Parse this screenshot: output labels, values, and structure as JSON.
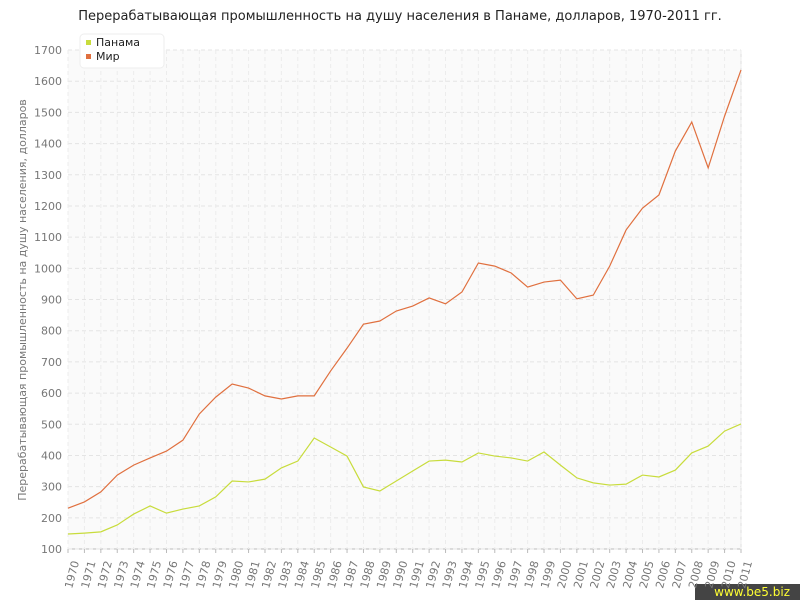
{
  "chart_data": {
    "type": "line",
    "title": "Перерабатывающая промышленность на душу населения в Панаме, долларов, 1970-2011 гг.",
    "y_label": "Перерабатывающая промышленность на душу населения, долларов",
    "x": [
      1970,
      1971,
      1972,
      1973,
      1974,
      1975,
      1976,
      1977,
      1978,
      1979,
      1980,
      1981,
      1982,
      1983,
      1984,
      1985,
      1986,
      1987,
      1988,
      1989,
      1990,
      1991,
      1992,
      1993,
      1994,
      1995,
      1996,
      1997,
      1998,
      1999,
      2000,
      2001,
      2002,
      2003,
      2004,
      2005,
      2006,
      2007,
      2008,
      2009,
      2010,
      2011
    ],
    "xlim": [
      1970,
      2011
    ],
    "ylim": [
      100,
      1700
    ],
    "yticks": [
      100,
      200,
      300,
      400,
      500,
      600,
      700,
      800,
      900,
      1000,
      1100,
      1200,
      1300,
      1400,
      1500,
      1600,
      1700
    ],
    "grid": true,
    "legend": "top-left",
    "series": [
      {
        "name": "Панама",
        "color": "#c8dc3c",
        "values": [
          148,
          151,
          155,
          177,
          212,
          238,
          215,
          228,
          238,
          267,
          318,
          315,
          324,
          360,
          382,
          456,
          427,
          398,
          299,
          286,
          318,
          350,
          382,
          385,
          379,
          408,
          398,
          392,
          382,
          411,
          369,
          328,
          312,
          305,
          308,
          337,
          331,
          353,
          408,
          430,
          478,
          501
        ]
      },
      {
        "name": "Мир",
        "color": "#e0703f",
        "values": [
          231,
          251,
          283,
          337,
          369,
          392,
          414,
          449,
          533,
          587,
          629,
          616,
          591,
          581,
          591,
          591,
          671,
          744,
          821,
          831,
          863,
          879,
          905,
          886,
          924,
          1017,
          1007,
          985,
          940,
          956,
          962,
          902,
          914,
          1007,
          1123,
          1193,
          1235,
          1376,
          1469,
          1322,
          1488,
          1636
        ]
      }
    ],
    "watermark": "www.be5.biz"
  }
}
